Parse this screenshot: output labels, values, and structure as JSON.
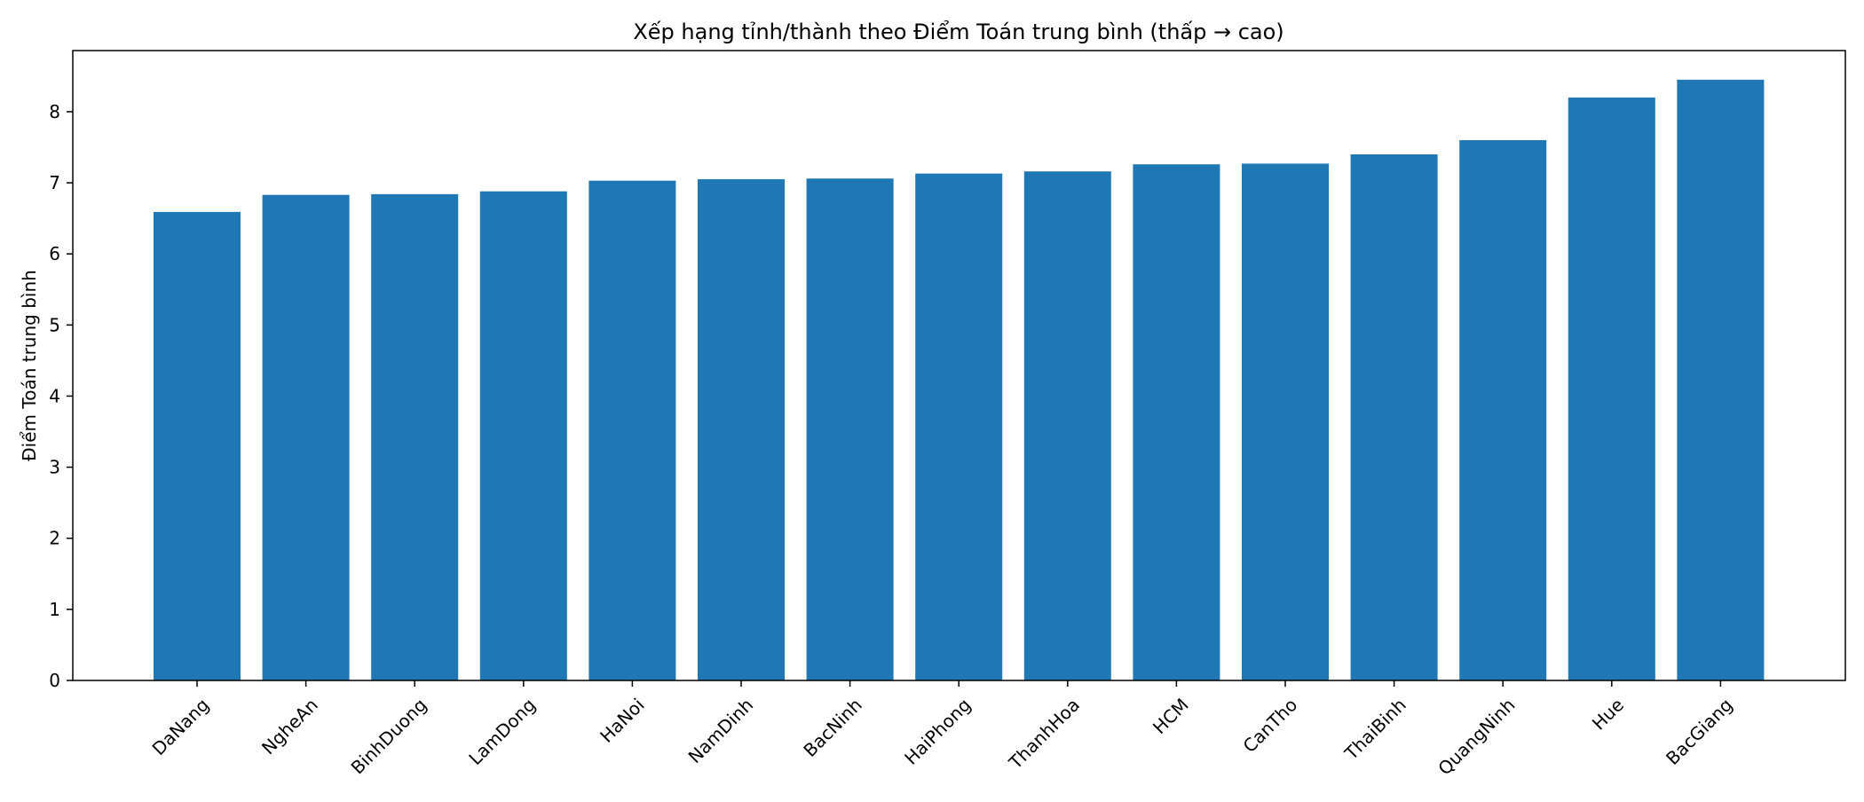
{
  "chart_data": {
    "type": "bar",
    "title": "Xếp hạng tỉnh/thành theo Điểm Toán trung bình (thấp → cao)",
    "xlabel": "",
    "ylabel": "Điểm Toán trung bình",
    "categories": [
      "DaNang",
      "NgheAn",
      "BinhDuong",
      "LamDong",
      "HaNoi",
      "NamDinh",
      "BacNinh",
      "HaiPhong",
      "ThanhHoa",
      "HCM",
      "CanTho",
      "ThaiBinh",
      "QuangNinh",
      "Hue",
      "BacGiang"
    ],
    "values": [
      6.59,
      6.83,
      6.84,
      6.88,
      7.03,
      7.05,
      7.06,
      7.13,
      7.16,
      7.26,
      7.27,
      7.4,
      7.6,
      8.2,
      8.45
    ],
    "ylim": [
      0,
      8.86
    ],
    "yticks": [
      0,
      1,
      2,
      3,
      4,
      5,
      6,
      7,
      8
    ],
    "grid": false,
    "legend": "none",
    "bar_color": "#1f77b4"
  }
}
